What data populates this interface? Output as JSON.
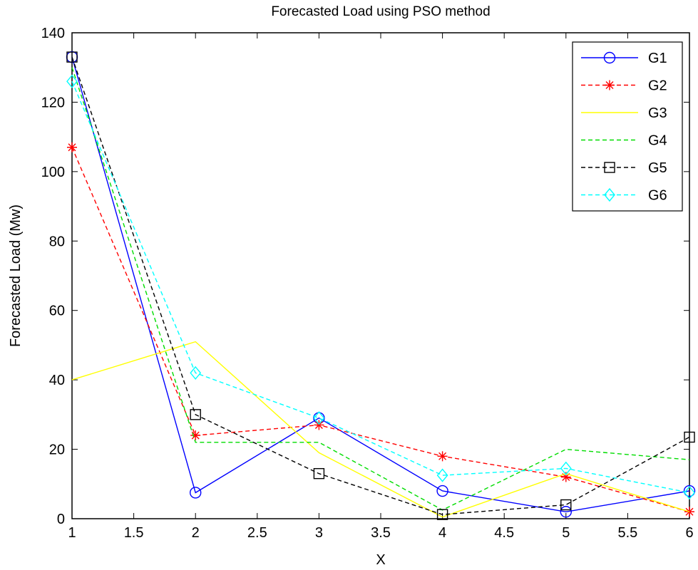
{
  "chart_data": {
    "type": "line",
    "title": "Forecasted Load using PSO method",
    "xlabel": "X",
    "ylabel": "Forecasted Load (Mw)",
    "xlim": [
      1,
      6
    ],
    "ylim": [
      0,
      140
    ],
    "xticks": [
      1,
      1.5,
      2,
      2.5,
      3,
      3.5,
      4,
      4.5,
      5,
      5.5,
      6
    ],
    "yticks": [
      0,
      20,
      40,
      60,
      80,
      100,
      120,
      140
    ],
    "x": [
      1,
      2,
      3,
      4,
      5,
      6
    ],
    "legend_position": "top-right",
    "grid": false,
    "series": [
      {
        "name": "G1",
        "color": "#0000ff",
        "style": "solid",
        "marker": "circle",
        "values": [
          133,
          7.5,
          29,
          8,
          2,
          8
        ]
      },
      {
        "name": "G2",
        "color": "#ff0000",
        "style": "dashed",
        "marker": "star",
        "values": [
          107,
          24,
          27,
          18,
          12,
          2
        ]
      },
      {
        "name": "G3",
        "color": "#ffff00",
        "style": "solid",
        "marker": "none",
        "values": [
          40,
          51,
          19,
          0.5,
          13,
          2
        ]
      },
      {
        "name": "G4",
        "color": "#00dd00",
        "style": "dashed",
        "marker": "none",
        "values": [
          130,
          22,
          22,
          2.5,
          20,
          17
        ]
      },
      {
        "name": "G5",
        "color": "#000000",
        "style": "dashed",
        "marker": "square",
        "values": [
          133,
          30,
          13,
          1.2,
          4,
          23.5
        ]
      },
      {
        "name": "G6",
        "color": "#00ffff",
        "style": "dashed",
        "marker": "diamond",
        "values": [
          126,
          42,
          29,
          12.5,
          14.5,
          7.5
        ]
      }
    ]
  }
}
